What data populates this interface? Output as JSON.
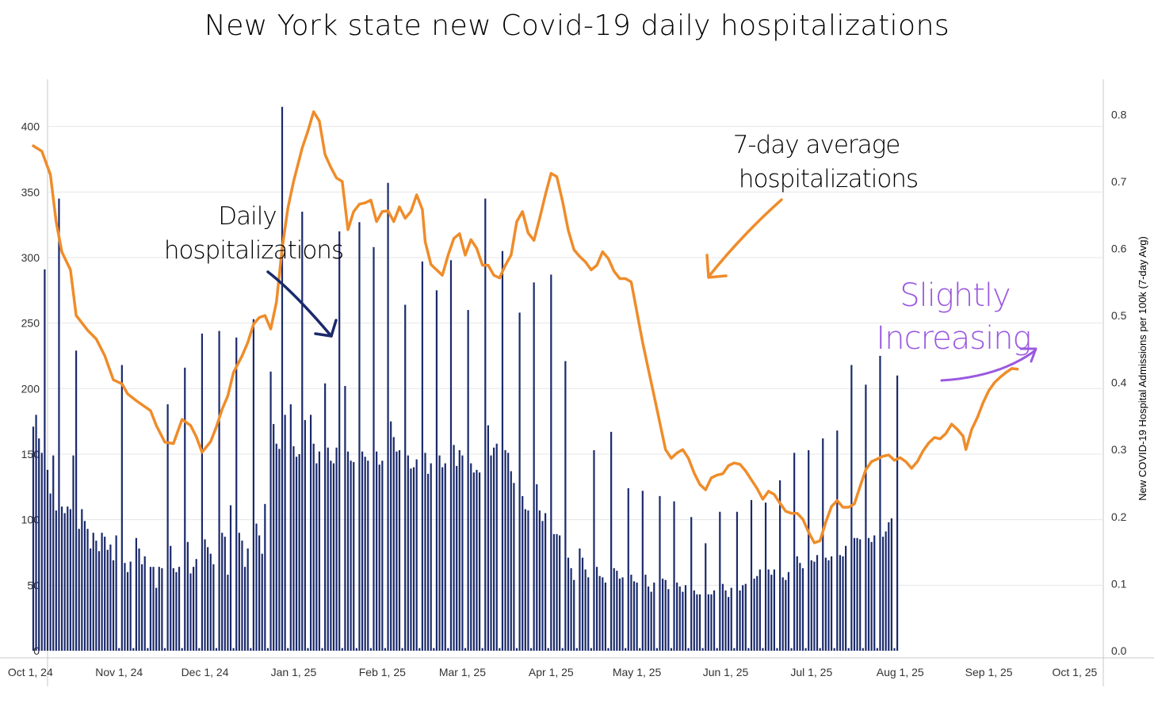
{
  "chart_data": {
    "type": "bar",
    "title": "New York state new Covid-19 daily hospitalizations",
    "xlabel": "",
    "ylabel": "",
    "y2label": "New COVID-19 Hospital Admissions per 100k (7-day Avg)",
    "ylim": [
      0,
      430
    ],
    "y2lim": [
      0,
      0.8405
    ],
    "yticks": [
      0,
      50,
      100,
      150,
      200,
      250,
      300,
      350,
      400
    ],
    "y2ticks": [
      "0.0",
      "0.1",
      "0.2",
      "0.3",
      "0.4",
      "0.5",
      "0.6",
      "0.7",
      "0.8"
    ],
    "x_start": "Sep 21, 24",
    "x_end": "Oct 4, 25",
    "xticks": [
      {
        "label": "Oct 1, 24",
        "day": 10
      },
      {
        "label": "Nov 1, 24",
        "day": 41
      },
      {
        "label": "Dec 1, 24",
        "day": 71
      },
      {
        "label": "Jan 1, 25",
        "day": 102
      },
      {
        "label": "Feb 1, 25",
        "day": 133
      },
      {
        "label": "Mar 1, 25",
        "day": 161
      },
      {
        "label": "Apr 1, 25",
        "day": 192
      },
      {
        "label": "May 1, 25",
        "day": 222
      },
      {
        "label": "Jun 1, 25",
        "day": 253
      },
      {
        "label": "Jul 1, 25",
        "day": 283
      },
      {
        "label": "Aug 1, 25",
        "day": 314
      },
      {
        "label": "Sep 1, 25",
        "day": 345
      },
      {
        "label": "Oct 1, 25",
        "day": 375
      }
    ],
    "series": [
      {
        "name": "Daily hospitalizations",
        "type": "bar",
        "axis": "left",
        "color": "#1b2a6b",
        "start_day": 11,
        "values": [
          171,
          180,
          162,
          151,
          291,
          138,
          120,
          149,
          107,
          345,
          110,
          105,
          110,
          108,
          149,
          229,
          93,
          108,
          99,
          93,
          78,
          90,
          84,
          76,
          90,
          87,
          77,
          81,
          69,
          88,
          2,
          218,
          67,
          60,
          68,
          2,
          86,
          78,
          66,
          72,
          2,
          64,
          64,
          48,
          64,
          63,
          2,
          188,
          80,
          63,
          60,
          64,
          2,
          216,
          83,
          59,
          64,
          70,
          2,
          242,
          85,
          79,
          74,
          66,
          2,
          244,
          90,
          87,
          58,
          111,
          2,
          239,
          90,
          84,
          64,
          78,
          2,
          253,
          97,
          88,
          74,
          112,
          2,
          213,
          173,
          158,
          154,
          415,
          180,
          2,
          188,
          156,
          148,
          150,
          335,
          176,
          2,
          180,
          158,
          143,
          152,
          2,
          204,
          155,
          145,
          143,
          155,
          320,
          2,
          202,
          152,
          145,
          144,
          2,
          327,
          152,
          148,
          145,
          2,
          308,
          152,
          142,
          145,
          2,
          357,
          175,
          163,
          152,
          153,
          2,
          264,
          149,
          139,
          140,
          146,
          2,
          297,
          151,
          135,
          143,
          2,
          275,
          149,
          140,
          143,
          2,
          298,
          157,
          141,
          153,
          149,
          2,
          260,
          143,
          136,
          138,
          136,
          2,
          345,
          172,
          149,
          155,
          158,
          2,
          305,
          153,
          151,
          137,
          128,
          2,
          258,
          118,
          108,
          107,
          2,
          281,
          127,
          107,
          99,
          105,
          2,
          287,
          89,
          89,
          88,
          2,
          221,
          71,
          63,
          54,
          2,
          78,
          71,
          62,
          56,
          2,
          153,
          64,
          57,
          56,
          52,
          2,
          167,
          63,
          61,
          55,
          56,
          2,
          124,
          58,
          53,
          52,
          2,
          122,
          58,
          49,
          45,
          52,
          2,
          118,
          55,
          54,
          47,
          2,
          114,
          52,
          49,
          45,
          50,
          2,
          102,
          46,
          43,
          43,
          2,
          82,
          43,
          43,
          46,
          2,
          106,
          51,
          46,
          41,
          48,
          2,
          106,
          46,
          50,
          51,
          2,
          115,
          55,
          57,
          62,
          2,
          113,
          62,
          58,
          62,
          2,
          130,
          56,
          54,
          60,
          2,
          151,
          72,
          67,
          63,
          2,
          153,
          69,
          68,
          73,
          2,
          162,
          71,
          69,
          72,
          2,
          168,
          73,
          72,
          80,
          2,
          218,
          86,
          86,
          85,
          2,
          203,
          86,
          83,
          88,
          2,
          225,
          87,
          91,
          98,
          101,
          2,
          210
        ]
      },
      {
        "name": "7-day average hospitalizations",
        "type": "line",
        "axis": "right",
        "color": "#ef8c2a",
        "points": [
          [
            11,
            0.753
          ],
          [
            14,
            0.745
          ],
          [
            17,
            0.71
          ],
          [
            19,
            0.64
          ],
          [
            21,
            0.595
          ],
          [
            24,
            0.568
          ],
          [
            26,
            0.5
          ],
          [
            30,
            0.478
          ],
          [
            33,
            0.465
          ],
          [
            36,
            0.44
          ],
          [
            39,
            0.404
          ],
          [
            42,
            0.398
          ],
          [
            44,
            0.383
          ],
          [
            47,
            0.373
          ],
          [
            50,
            0.364
          ],
          [
            52,
            0.358
          ],
          [
            54,
            0.336
          ],
          [
            57,
            0.311
          ],
          [
            60,
            0.309
          ],
          [
            63,
            0.345
          ],
          [
            66,
            0.336
          ],
          [
            68,
            0.319
          ],
          [
            70,
            0.296
          ],
          [
            73,
            0.312
          ],
          [
            75,
            0.334
          ],
          [
            77,
            0.36
          ],
          [
            79,
            0.38
          ],
          [
            81,
            0.415
          ],
          [
            84,
            0.44
          ],
          [
            86,
            0.46
          ],
          [
            88,
            0.487
          ],
          [
            90,
            0.497
          ],
          [
            92,
            0.5
          ],
          [
            94,
            0.48
          ],
          [
            96,
            0.52
          ],
          [
            98,
            0.6
          ],
          [
            100,
            0.66
          ],
          [
            102,
            0.7
          ],
          [
            105,
            0.75
          ],
          [
            107,
            0.775
          ],
          [
            109,
            0.804
          ],
          [
            111,
            0.79
          ],
          [
            113,
            0.74
          ],
          [
            115,
            0.721
          ],
          [
            117,
            0.705
          ],
          [
            119,
            0.7
          ],
          [
            121,
            0.628
          ],
          [
            123,
            0.655
          ],
          [
            125,
            0.666
          ],
          [
            127,
            0.668
          ],
          [
            129,
            0.672
          ],
          [
            131,
            0.64
          ],
          [
            133,
            0.655
          ],
          [
            135,
            0.656
          ],
          [
            137,
            0.64
          ],
          [
            139,
            0.662
          ],
          [
            141,
            0.645
          ],
          [
            143,
            0.655
          ],
          [
            145,
            0.68
          ],
          [
            147,
            0.658
          ],
          [
            148,
            0.61
          ],
          [
            150,
            0.576
          ],
          [
            152,
            0.568
          ],
          [
            154,
            0.56
          ],
          [
            156,
            0.59
          ],
          [
            158,
            0.615
          ],
          [
            160,
            0.622
          ],
          [
            162,
            0.59
          ],
          [
            164,
            0.613
          ],
          [
            166,
            0.6
          ],
          [
            168,
            0.575
          ],
          [
            170,
            0.575
          ],
          [
            172,
            0.56
          ],
          [
            174,
            0.556
          ],
          [
            176,
            0.575
          ],
          [
            178,
            0.59
          ],
          [
            180,
            0.64
          ],
          [
            182,
            0.655
          ],
          [
            184,
            0.623
          ],
          [
            186,
            0.612
          ],
          [
            188,
            0.645
          ],
          [
            190,
            0.68
          ],
          [
            192,
            0.712
          ],
          [
            194,
            0.707
          ],
          [
            196,
            0.67
          ],
          [
            198,
            0.627
          ],
          [
            200,
            0.598
          ],
          [
            202,
            0.588
          ],
          [
            204,
            0.58
          ],
          [
            206,
            0.568
          ],
          [
            208,
            0.575
          ],
          [
            210,
            0.595
          ],
          [
            212,
            0.585
          ],
          [
            214,
            0.566
          ],
          [
            216,
            0.555
          ],
          [
            218,
            0.555
          ],
          [
            220,
            0.55
          ],
          [
            222,
            0.505
          ],
          [
            224,
            0.46
          ],
          [
            226,
            0.42
          ],
          [
            228,
            0.38
          ],
          [
            230,
            0.34
          ],
          [
            232,
            0.3
          ],
          [
            234,
            0.287
          ],
          [
            236,
            0.295
          ],
          [
            238,
            0.3
          ],
          [
            240,
            0.287
          ],
          [
            242,
            0.265
          ],
          [
            244,
            0.248
          ],
          [
            246,
            0.24
          ],
          [
            248,
            0.258
          ],
          [
            250,
            0.262
          ],
          [
            252,
            0.264
          ],
          [
            254,
            0.276
          ],
          [
            256,
            0.28
          ],
          [
            258,
            0.278
          ],
          [
            260,
            0.268
          ],
          [
            262,
            0.255
          ],
          [
            264,
            0.242
          ],
          [
            266,
            0.226
          ],
          [
            268,
            0.238
          ],
          [
            270,
            0.233
          ],
          [
            272,
            0.22
          ],
          [
            274,
            0.208
          ],
          [
            276,
            0.205
          ],
          [
            278,
            0.205
          ],
          [
            280,
            0.196
          ],
          [
            282,
            0.177
          ],
          [
            284,
            0.161
          ],
          [
            286,
            0.164
          ],
          [
            288,
            0.192
          ],
          [
            290,
            0.215
          ],
          [
            292,
            0.224
          ],
          [
            294,
            0.214
          ],
          [
            296,
            0.214
          ],
          [
            298,
            0.219
          ],
          [
            300,
            0.245
          ],
          [
            302,
            0.27
          ],
          [
            304,
            0.282
          ],
          [
            306,
            0.286
          ],
          [
            308,
            0.29
          ],
          [
            310,
            0.292
          ],
          [
            312,
            0.284
          ],
          [
            314,
            0.288
          ],
          [
            316,
            0.282
          ],
          [
            318,
            0.272
          ],
          [
            320,
            0.282
          ],
          [
            322,
            0.298
          ],
          [
            324,
            0.31
          ],
          [
            326,
            0.318
          ],
          [
            328,
            0.316
          ],
          [
            330,
            0.324
          ],
          [
            332,
            0.338
          ],
          [
            334,
            0.33
          ],
          [
            336,
            0.32
          ],
          [
            337,
            0.3
          ],
          [
            339,
            0.33
          ],
          [
            341,
            0.348
          ],
          [
            343,
            0.37
          ],
          [
            345,
            0.388
          ],
          [
            347,
            0.4
          ],
          [
            349,
            0.408
          ],
          [
            351,
            0.415
          ],
          [
            353,
            0.421
          ],
          [
            355,
            0.42
          ]
        ]
      }
    ],
    "annotations": [
      {
        "text": "Daily",
        "color": "#000000"
      },
      {
        "text": "hospitalizations",
        "color": "#000000"
      },
      {
        "text": "7-day  average",
        "color": "#000000"
      },
      {
        "text": "hospitalizations",
        "color": "#000000"
      },
      {
        "text": "Slightly",
        "color": "#9b59e0"
      },
      {
        "text": "Increasing",
        "color": "#9b59e0"
      }
    ],
    "arrow_colors": {
      "daily": "#1b2a6b",
      "avg": "#ef8c2a",
      "increasing": "#9b59e0"
    },
    "grid_color": "#e6e6e6",
    "axis_color": "#c9c9c9",
    "tick_color": "#333333"
  }
}
